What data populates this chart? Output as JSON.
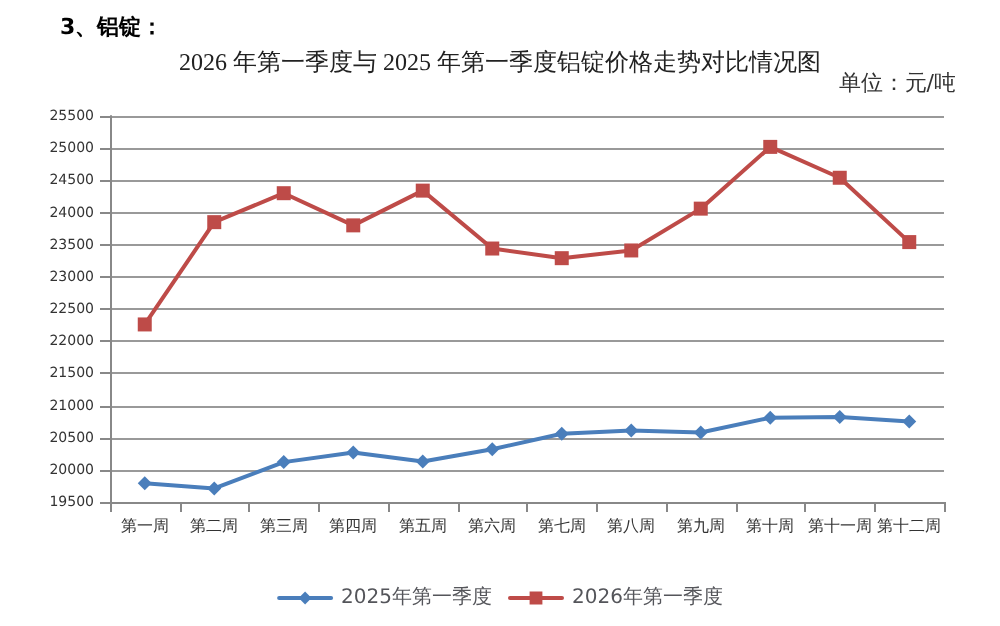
{
  "chart_data": {
    "type": "line",
    "title": "2026 年第一季度与 2025 年第一季度铝锭价格走势对比情况图",
    "annotations": [
      "3、铝锭：",
      "单位：元/吨"
    ],
    "categories": [
      "第一周",
      "第二周",
      "第三周",
      "第四周",
      "第五周",
      "第六周",
      "第七周",
      "第八周",
      "第九周",
      "第十周",
      "第十一周",
      "第十二周"
    ],
    "series": [
      {
        "name": "2025年第一季度",
        "color": "#4a7ebb",
        "marker": "diamond",
        "values": [
          19790,
          19710,
          20120,
          20270,
          20130,
          20320,
          20560,
          20610,
          20580,
          20810,
          20820,
          20750
        ]
      },
      {
        "name": "2026年第一季度",
        "color": "#be4b48",
        "marker": "square",
        "values": [
          22260,
          23850,
          24300,
          23800,
          24340,
          23440,
          23290,
          23410,
          24060,
          25020,
          24540,
          23540
        ]
      }
    ],
    "ylim": [
      19500,
      25500
    ],
    "yticks": [
      19500,
      20000,
      20500,
      21000,
      21500,
      22000,
      22500,
      23000,
      23500,
      24000,
      24500,
      25000,
      25500
    ],
    "grid": "y",
    "legend": "bottom",
    "line_style": "solid"
  }
}
